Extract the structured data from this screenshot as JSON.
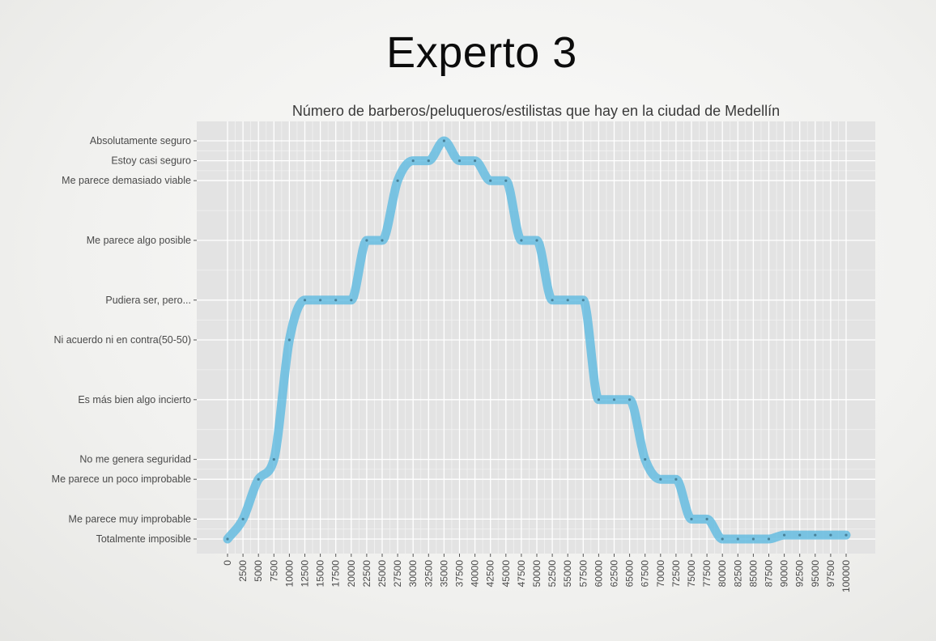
{
  "page": {
    "title": "Experto 3"
  },
  "chart_data": {
    "type": "line",
    "title": "Número de barberos/peluqueros/estilistas que hay en la ciudad de Medellín",
    "xlabel": "",
    "ylabel": "",
    "xlim": [
      0,
      100000
    ],
    "x_tick_labels": [
      "0",
      "2500",
      "5000",
      "7500",
      "10000",
      "12500",
      "15000",
      "17500",
      "20000",
      "22500",
      "25000",
      "27500",
      "30000",
      "32500",
      "35000",
      "37500",
      "40000",
      "42500",
      "45000",
      "47500",
      "50000",
      "52500",
      "55000",
      "57500",
      "60000",
      "62500",
      "65000",
      "67500",
      "70000",
      "72500",
      "75000",
      "77500",
      "80000",
      "82500",
      "85000",
      "87500",
      "90000",
      "92500",
      "95000",
      "97500",
      "100000"
    ],
    "y_categories": [
      "Totalmente imposible",
      "Me parece muy improbable",
      "Me parece un poco improbable",
      "No me genera seguridad",
      "Es más bien algo incierto",
      "Ni acuerdo ni en contra(50-50)",
      "Pudiera ser, pero...",
      "Me parece algo posible",
      "Me parece demasiado viable",
      "Estoy casi seguro",
      "Absolutamente seguro"
    ],
    "y_values": [
      0,
      0.05,
      0.15,
      0.2,
      0.35,
      0.5,
      0.6,
      0.75,
      0.9,
      0.95,
      1.0
    ],
    "grid": true,
    "legend": "none",
    "line_color": "#5ab8e0",
    "series": [
      {
        "x": [
          0,
          2500,
          5000,
          7500,
          10000,
          12500,
          15000,
          17500,
          20000,
          22500,
          25000,
          27500,
          30000,
          32500,
          35000,
          37500,
          40000,
          42500,
          45000,
          47500,
          50000,
          52500,
          55000,
          57500,
          60000,
          62500,
          65000,
          67500,
          70000,
          72500,
          75000,
          77500,
          80000,
          82500,
          85000,
          87500,
          90000,
          92500,
          95000,
          97500,
          100000
        ],
        "y": [
          0,
          0.05,
          0.15,
          0.2,
          0.5,
          0.6,
          0.6,
          0.6,
          0.6,
          0.75,
          0.75,
          0.9,
          0.95,
          0.95,
          1.0,
          0.95,
          0.95,
          0.9,
          0.9,
          0.75,
          0.75,
          0.6,
          0.6,
          0.6,
          0.35,
          0.35,
          0.35,
          0.2,
          0.15,
          0.15,
          0.05,
          0.05,
          0,
          0,
          0,
          0,
          0.01,
          0.01,
          0.01,
          0.01,
          0.01
        ]
      }
    ]
  }
}
